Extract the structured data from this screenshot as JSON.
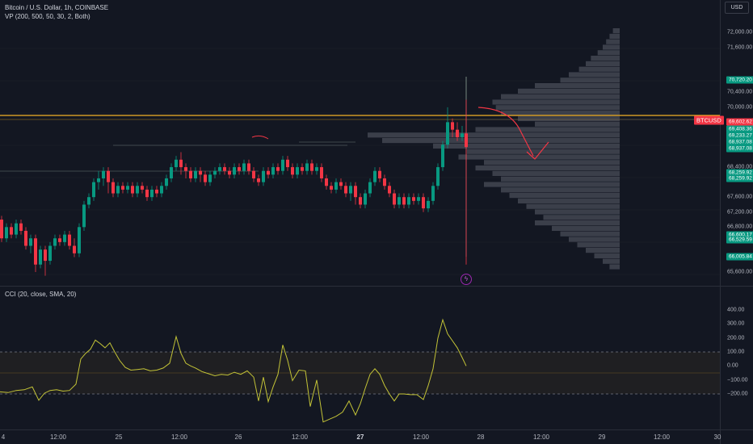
{
  "header": {
    "title": "Bitcoin / U.S. Dollar, 1h, COINBASE",
    "indicator": "VP (200, 500, 50, 30, 2, Both)",
    "currency": "USD"
  },
  "cci": {
    "label": "CCI (20, close, SMA, 20)",
    "ticks": [
      {
        "v": 400,
        "label": "400.00"
      },
      {
        "v": 300,
        "label": "300.00"
      },
      {
        "v": 200,
        "label": "200.00"
      },
      {
        "v": 100,
        "label": "100.00"
      },
      {
        "v": 0,
        "label": "0.00"
      },
      {
        "v": -100,
        "label": "−100.00"
      },
      {
        "v": -200,
        "label": "−200.00"
      }
    ],
    "bands": {
      "upper": 100,
      "lower": -200,
      "mid": -100
    }
  },
  "price_axis": {
    "ticks": [
      {
        "v": 72000,
        "label": "72,000.00"
      },
      {
        "v": 71600,
        "label": "71,600.00"
      },
      {
        "v": 70400,
        "label": "70,400.00"
      },
      {
        "v": 70000,
        "label": "70,000.00"
      },
      {
        "v": 68400,
        "label": "68,400.00"
      },
      {
        "v": 67600,
        "label": "67,600.00"
      },
      {
        "v": 67200,
        "label": "67,200.00"
      },
      {
        "v": 66800,
        "label": "66,800.00"
      },
      {
        "v": 65600,
        "label": "65,600.00"
      }
    ],
    "tags": [
      {
        "v": 70720,
        "label": "70,720.20",
        "color": "#089981"
      },
      {
        "v": 69602,
        "label": "69,602.62",
        "color": "#f23645"
      },
      {
        "v": 69408,
        "label": "69,408.36",
        "color": "#089981"
      },
      {
        "v": 69233,
        "label": "69,233.27",
        "color": "#089981"
      },
      {
        "v": 69065,
        "label": "68,937.08",
        "color": "#089981"
      },
      {
        "v": 68900,
        "label": "68,937.08",
        "color": "#089981"
      },
      {
        "v": 68259,
        "label": "68,259.92",
        "color": "#089981"
      },
      {
        "v": 68110,
        "label": "68,259.92",
        "color": "#089981"
      },
      {
        "v": 66600,
        "label": "66,600.17",
        "color": "#089981"
      },
      {
        "v": 66470,
        "label": "66,529.59",
        "color": "#089981"
      },
      {
        "v": 66006,
        "label": "66,005.84",
        "color": "#089981"
      }
    ],
    "symbol": "BTCUSD",
    "symbol_v": 68990
  },
  "time_axis": [
    {
      "label": "4",
      "x": 0,
      "bold": false
    },
    {
      "label": "12:00",
      "x": 72,
      "bold": false
    },
    {
      "label": "25",
      "x": 147,
      "bold": false
    },
    {
      "label": "12:00",
      "x": 222,
      "bold": false
    },
    {
      "label": "26",
      "x": 295,
      "bold": false
    },
    {
      "label": "12:00",
      "x": 371,
      "bold": false
    },
    {
      "label": "27",
      "x": 446,
      "bold": true
    },
    {
      "label": "12:00",
      "x": 521,
      "bold": false
    },
    {
      "label": "28",
      "x": 595,
      "bold": false
    },
    {
      "label": "12:00",
      "x": 670,
      "bold": false
    },
    {
      "label": "29",
      "x": 745,
      "bold": false
    },
    {
      "label": "12:00",
      "x": 819,
      "bold": false
    },
    {
      "label": "30",
      "x": 893,
      "bold": false
    }
  ],
  "colors": {
    "up": "#089981",
    "down": "#f23645",
    "support": "#f5b225",
    "cci": "#c4c437",
    "profile": "#5d606b",
    "arrow": "#f23645"
  }
}
